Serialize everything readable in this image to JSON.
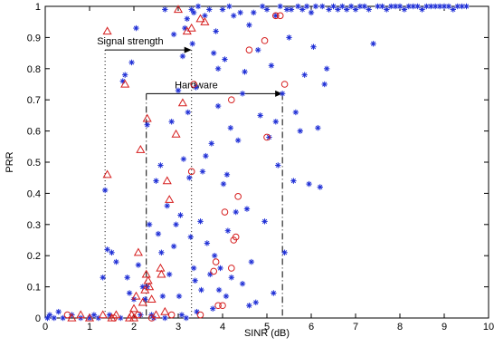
{
  "chart_data": {
    "type": "scatter",
    "xlabel": "SINR (dB)",
    "ylabel": "PRR",
    "xlim": [
      0,
      10
    ],
    "ylim": [
      0,
      1
    ],
    "x_ticks": [
      0,
      1,
      2,
      3,
      4,
      5,
      6,
      7,
      8,
      9,
      10
    ],
    "y_ticks": [
      0,
      0.1,
      0.2,
      0.3,
      0.4,
      0.5,
      0.6,
      0.7,
      0.8,
      0.9,
      1
    ],
    "x_tick_labels": [
      "0",
      "1",
      "2",
      "3",
      "4",
      "5",
      "6",
      "7",
      "8",
      "9",
      "10"
    ],
    "y_tick_labels": [
      "0",
      "0.1",
      "0.2",
      "0.3",
      "0.4",
      "0.5",
      "0.6",
      "0.7",
      "0.8",
      "0.9",
      "1"
    ],
    "grid": false,
    "series": [
      {
        "marker": "asterisk",
        "color": "#1f2fd6",
        "points": [
          [
            0.05,
            0.0
          ],
          [
            0.1,
            0.01
          ],
          [
            0.2,
            0.0
          ],
          [
            0.3,
            0.02
          ],
          [
            0.4,
            0.0
          ],
          [
            0.6,
            0.01
          ],
          [
            0.8,
            0.0
          ],
          [
            1.0,
            0.0
          ],
          [
            1.1,
            0.01
          ],
          [
            1.2,
            0.0
          ],
          [
            1.3,
            0.13
          ],
          [
            1.35,
            0.41
          ],
          [
            1.4,
            0.22
          ],
          [
            1.45,
            0.01
          ],
          [
            1.5,
            0.21
          ],
          [
            1.6,
            0.18
          ],
          [
            1.7,
            0.0
          ],
          [
            1.75,
            0.76
          ],
          [
            1.8,
            0.78
          ],
          [
            1.85,
            0.13
          ],
          [
            1.9,
            0.08
          ],
          [
            1.95,
            0.82
          ],
          [
            2.0,
            0.06
          ],
          [
            2.05,
            0.93
          ],
          [
            2.1,
            0.17
          ],
          [
            2.15,
            0.01
          ],
          [
            2.2,
            0.1
          ],
          [
            2.25,
            0.06
          ],
          [
            2.3,
            0.62
          ],
          [
            2.35,
            0.3
          ],
          [
            2.4,
            0.01
          ],
          [
            2.45,
            0.0
          ],
          [
            2.5,
            0.44
          ],
          [
            2.55,
            0.27
          ],
          [
            2.6,
            0.49
          ],
          [
            2.62,
            0.21
          ],
          [
            2.65,
            0.07
          ],
          [
            2.7,
            0.0
          ],
          [
            2.75,
            0.36
          ],
          [
            2.8,
            0.14
          ],
          [
            2.85,
            0.63
          ],
          [
            2.9,
            0.23
          ],
          [
            2.95,
            0.3
          ],
          [
            3.0,
            0.73
          ],
          [
            3.02,
            0.07
          ],
          [
            3.05,
            0.33
          ],
          [
            3.08,
            0.01
          ],
          [
            3.1,
            0.84
          ],
          [
            3.12,
            0.51
          ],
          [
            3.15,
            0.93
          ],
          [
            3.18,
            0.0
          ],
          [
            3.2,
            0.96
          ],
          [
            3.22,
            0.66
          ],
          [
            3.25,
            0.45
          ],
          [
            3.28,
            0.26
          ],
          [
            3.3,
            0.99
          ],
          [
            3.32,
            0.88
          ],
          [
            3.35,
            0.16
          ],
          [
            3.38,
            0.12
          ],
          [
            3.4,
            0.74
          ],
          [
            3.42,
            0.02
          ],
          [
            3.45,
            1.0
          ],
          [
            3.5,
            0.31
          ],
          [
            3.52,
            0.09
          ],
          [
            3.55,
            0.47
          ],
          [
            3.6,
            0.97
          ],
          [
            3.62,
            0.52
          ],
          [
            3.65,
            0.24
          ],
          [
            3.7,
            0.99
          ],
          [
            3.72,
            0.14
          ],
          [
            3.75,
            0.56
          ],
          [
            3.78,
            0.03
          ],
          [
            3.8,
            0.85
          ],
          [
            3.82,
            0.2
          ],
          [
            3.85,
            0.92
          ],
          [
            3.9,
            0.68
          ],
          [
            3.92,
            0.09
          ],
          [
            3.95,
            0.16
          ],
          [
            4.0,
            0.99
          ],
          [
            4.02,
            0.43
          ],
          [
            4.05,
            0.83
          ],
          [
            4.08,
            0.07
          ],
          [
            4.1,
            0.46
          ],
          [
            4.12,
            0.28
          ],
          [
            4.15,
            1.0
          ],
          [
            4.18,
            0.61
          ],
          [
            4.2,
            0.13
          ],
          [
            4.25,
            0.97
          ],
          [
            4.3,
            0.34
          ],
          [
            4.35,
            0.57
          ],
          [
            4.4,
            0.98
          ],
          [
            4.45,
            0.11
          ],
          [
            4.5,
            0.79
          ],
          [
            4.55,
            0.35
          ],
          [
            4.6,
            0.94
          ],
          [
            4.65,
            0.18
          ],
          [
            4.7,
            0.98
          ],
          [
            4.75,
            0.05
          ],
          [
            4.8,
            0.86
          ],
          [
            4.85,
            0.65
          ],
          [
            4.9,
            1.0
          ],
          [
            4.95,
            0.31
          ],
          [
            5.0,
            0.99
          ],
          [
            5.05,
            0.58
          ],
          [
            5.1,
            0.81
          ],
          [
            5.15,
            0.08
          ],
          [
            5.2,
            0.97
          ],
          [
            5.25,
            0.49
          ],
          [
            5.3,
            1.0
          ],
          [
            5.35,
            0.72
          ],
          [
            5.4,
            0.21
          ],
          [
            5.45,
            0.99
          ],
          [
            5.5,
            0.9
          ],
          [
            5.55,
            0.99
          ],
          [
            5.6,
            0.44
          ],
          [
            5.7,
            1.0
          ],
          [
            5.75,
            0.6
          ],
          [
            5.8,
            0.99
          ],
          [
            5.85,
            0.78
          ],
          [
            5.9,
            1.0
          ],
          [
            5.95,
            0.43
          ],
          [
            6.0,
            0.98
          ],
          [
            6.05,
            0.87
          ],
          [
            6.1,
            1.0
          ],
          [
            6.15,
            0.61
          ],
          [
            6.2,
            0.42
          ],
          [
            6.25,
            1.0
          ],
          [
            6.3,
            0.75
          ],
          [
            6.4,
            0.99
          ],
          [
            6.5,
            1.0
          ],
          [
            6.6,
            0.99
          ],
          [
            6.7,
            1.0
          ],
          [
            6.8,
            0.99
          ],
          [
            6.9,
            1.0
          ],
          [
            7.0,
            0.99
          ],
          [
            7.1,
            1.0
          ],
          [
            7.2,
            1.0
          ],
          [
            7.3,
            0.99
          ],
          [
            7.4,
            0.88
          ],
          [
            7.5,
            1.0
          ],
          [
            7.6,
            1.0
          ],
          [
            7.7,
            0.99
          ],
          [
            7.8,
            1.0
          ],
          [
            7.9,
            1.0
          ],
          [
            8.0,
            1.0
          ],
          [
            8.1,
            0.99
          ],
          [
            8.2,
            1.0
          ],
          [
            8.3,
            1.0
          ],
          [
            8.4,
            1.0
          ],
          [
            8.5,
            0.99
          ],
          [
            8.6,
            1.0
          ],
          [
            8.7,
            1.0
          ],
          [
            8.8,
            1.0
          ],
          [
            8.9,
            1.0
          ],
          [
            9.0,
            1.0
          ],
          [
            9.1,
            1.0
          ],
          [
            9.2,
            0.99
          ],
          [
            9.3,
            1.0
          ],
          [
            9.4,
            1.0
          ],
          [
            9.5,
            1.0
          ],
          [
            2.7,
            0.99
          ],
          [
            2.9,
            0.91
          ],
          [
            3.35,
            0.98
          ],
          [
            3.9,
            0.8
          ],
          [
            4.45,
            0.72
          ],
          [
            5.2,
            0.63
          ],
          [
            5.65,
            0.66
          ],
          [
            6.35,
            0.8
          ],
          [
            4.6,
            0.04
          ],
          [
            2.3,
            0.1
          ]
        ]
      },
      {
        "marker": "triangle",
        "color": "#d61f1f",
        "points": [
          [
            0.6,
            0.0
          ],
          [
            0.8,
            0.01
          ],
          [
            1.0,
            0.0
          ],
          [
            1.3,
            0.01
          ],
          [
            1.4,
            0.46
          ],
          [
            1.5,
            0.0
          ],
          [
            1.6,
            0.01
          ],
          [
            1.8,
            0.75
          ],
          [
            1.9,
            0.0
          ],
          [
            1.95,
            0.01
          ],
          [
            2.0,
            0.03
          ],
          [
            2.05,
            0.07
          ],
          [
            2.1,
            0.21
          ],
          [
            2.15,
            0.54
          ],
          [
            2.2,
            0.05
          ],
          [
            2.25,
            0.09
          ],
          [
            2.28,
            0.14
          ],
          [
            2.3,
            0.64
          ],
          [
            2.32,
            0.12
          ],
          [
            2.35,
            0.1
          ],
          [
            2.4,
            0.06
          ],
          [
            2.5,
            0.01
          ],
          [
            2.6,
            0.16
          ],
          [
            2.62,
            0.14
          ],
          [
            2.7,
            0.02
          ],
          [
            2.75,
            0.44
          ],
          [
            2.8,
            0.38
          ],
          [
            2.95,
            0.59
          ],
          [
            3.1,
            0.69
          ],
          [
            3.2,
            0.92
          ],
          [
            3.3,
            0.93
          ],
          [
            3.5,
            0.96
          ],
          [
            3.6,
            0.95
          ],
          [
            1.4,
            0.92
          ],
          [
            3.0,
            0.99
          ],
          [
            2.0,
            0.0
          ]
        ]
      },
      {
        "marker": "circle",
        "color": "#d61f1f",
        "points": [
          [
            0.5,
            0.01
          ],
          [
            1.55,
            0.0
          ],
          [
            2.4,
            0.0
          ],
          [
            2.85,
            0.01
          ],
          [
            3.3,
            0.47
          ],
          [
            3.35,
            0.75
          ],
          [
            3.8,
            0.15
          ],
          [
            3.9,
            0.04
          ],
          [
            4.0,
            0.04
          ],
          [
            4.05,
            0.34
          ],
          [
            4.2,
            0.16
          ],
          [
            4.3,
            0.26
          ],
          [
            4.35,
            0.39
          ],
          [
            4.2,
            0.7
          ],
          [
            4.6,
            0.86
          ],
          [
            4.95,
            0.89
          ],
          [
            5.0,
            0.58
          ],
          [
            5.2,
            0.97
          ],
          [
            5.3,
            0.97
          ],
          [
            5.4,
            0.75
          ],
          [
            4.25,
            0.25
          ],
          [
            3.85,
            0.18
          ],
          [
            2.1,
            0.01
          ],
          [
            3.5,
            0.01
          ]
        ]
      }
    ],
    "annotations": [
      {
        "label": "Signal strength",
        "from_x": 1.35,
        "to_x": 3.3,
        "y": 0.86,
        "line_style": "dotted"
      },
      {
        "label": "Hardware",
        "from_x": 2.28,
        "to_x": 5.35,
        "y": 0.72,
        "line_style": "dashdot"
      }
    ]
  }
}
